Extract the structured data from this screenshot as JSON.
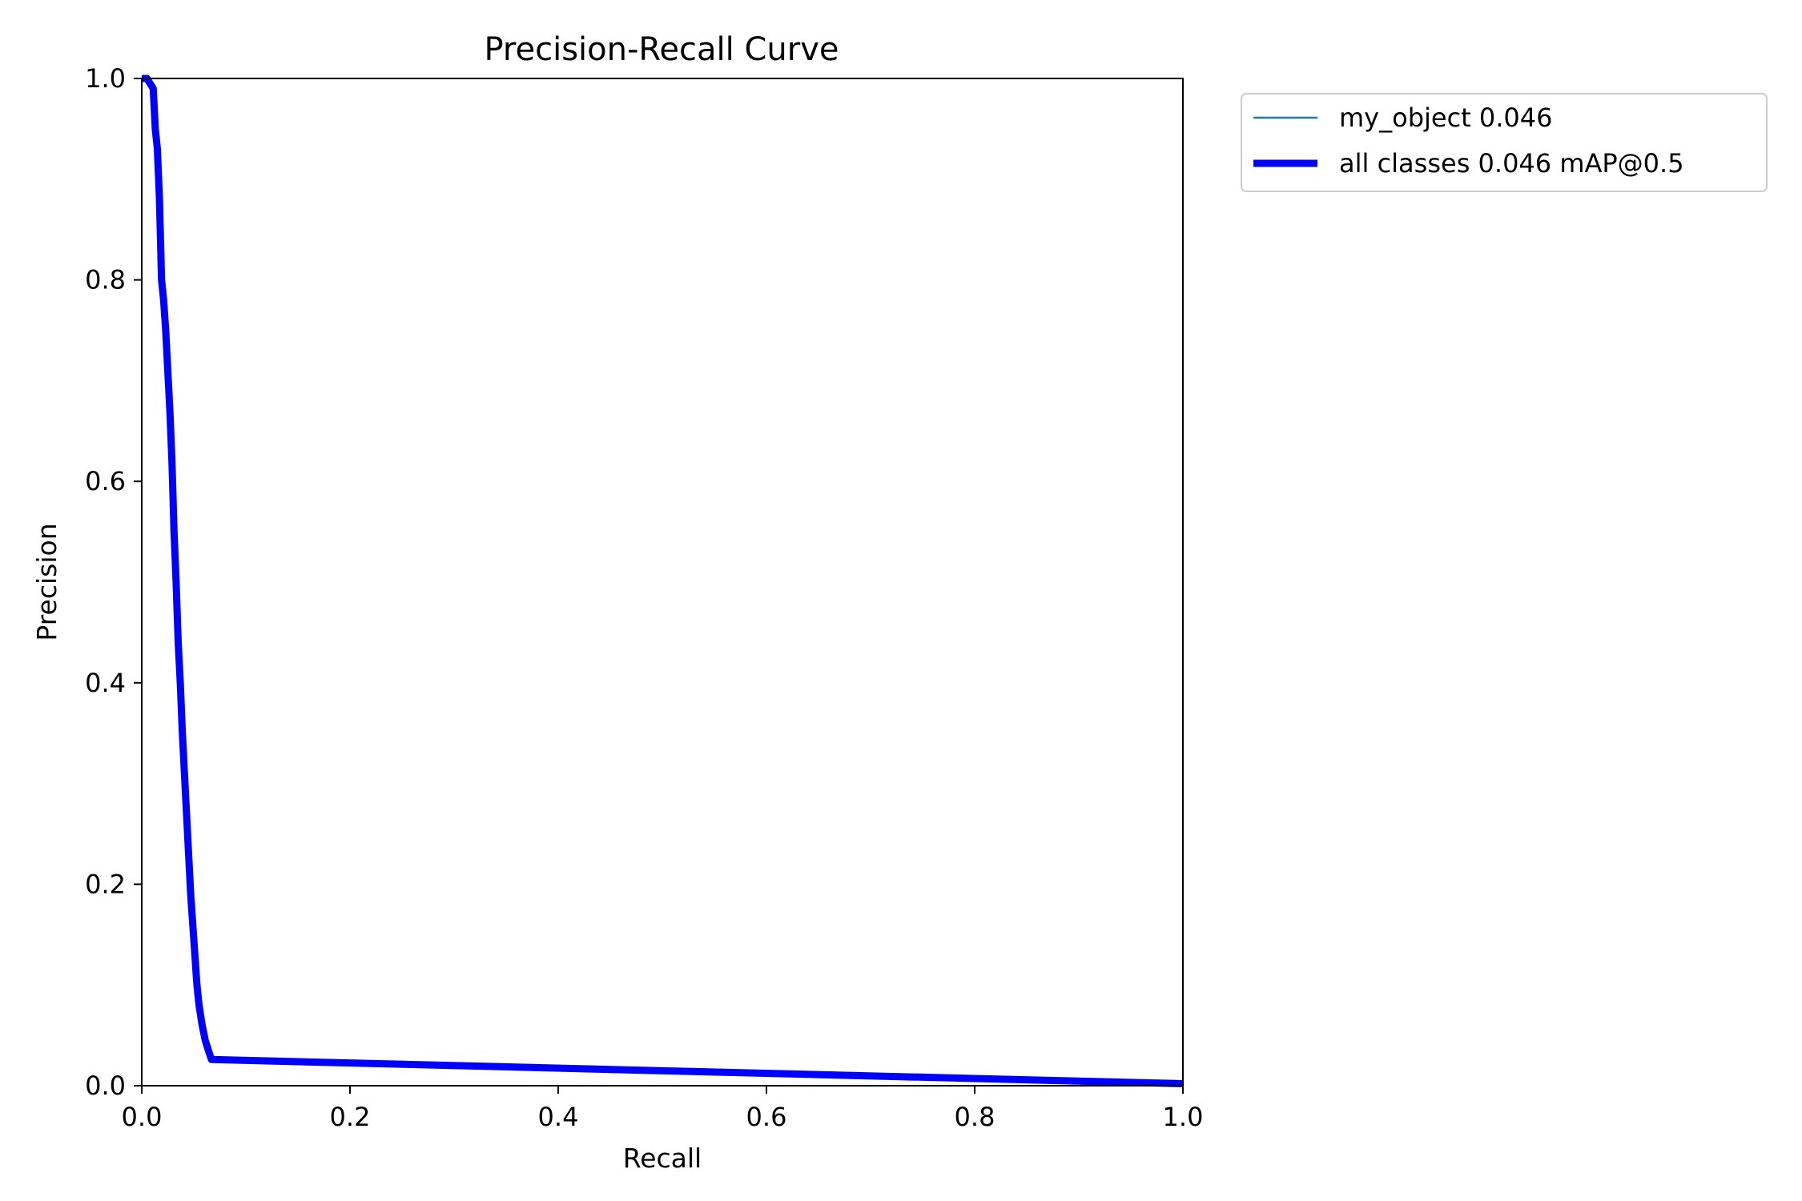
{
  "chart_data": {
    "type": "line",
    "title": "Precision-Recall Curve",
    "xlabel": "Recall",
    "ylabel": "Precision",
    "xlim": [
      0,
      1
    ],
    "ylim": [
      0,
      1
    ],
    "grid": false,
    "legend_position": "outside-top-right",
    "x_ticks": [
      "0.0",
      "0.2",
      "0.4",
      "0.6",
      "0.8",
      "1.0"
    ],
    "y_ticks": [
      "0.0",
      "0.2",
      "0.4",
      "0.6",
      "0.8",
      "1.0"
    ],
    "series": [
      {
        "name": "my_object 0.046",
        "color": "#1f77b4",
        "x": [
          0.0,
          0.005,
          0.011,
          0.013,
          0.015,
          0.017,
          0.018,
          0.019,
          0.021,
          0.023,
          0.025,
          0.027,
          0.029,
          0.031,
          0.033,
          0.035,
          0.037,
          0.039,
          0.041,
          0.043,
          0.045,
          0.047,
          0.049,
          0.051,
          0.053,
          0.055,
          0.058,
          0.061,
          0.064,
          0.067,
          1.0
        ],
        "y": [
          1.0,
          1.0,
          0.99,
          0.95,
          0.93,
          0.88,
          0.84,
          0.8,
          0.78,
          0.75,
          0.71,
          0.67,
          0.62,
          0.55,
          0.5,
          0.44,
          0.4,
          0.35,
          0.31,
          0.27,
          0.23,
          0.19,
          0.16,
          0.13,
          0.1,
          0.08,
          0.06,
          0.045,
          0.035,
          0.026,
          0.002
        ]
      },
      {
        "name": "all classes 0.046 mAP@0.5",
        "color": "#0000ff",
        "x": [
          0.0,
          0.005,
          0.011,
          0.013,
          0.015,
          0.017,
          0.018,
          0.019,
          0.021,
          0.023,
          0.025,
          0.027,
          0.029,
          0.031,
          0.033,
          0.035,
          0.037,
          0.039,
          0.041,
          0.043,
          0.045,
          0.047,
          0.049,
          0.051,
          0.053,
          0.055,
          0.058,
          0.061,
          0.064,
          0.067,
          1.0
        ],
        "y": [
          1.0,
          1.0,
          0.99,
          0.95,
          0.93,
          0.88,
          0.84,
          0.8,
          0.78,
          0.75,
          0.71,
          0.67,
          0.62,
          0.55,
          0.5,
          0.44,
          0.4,
          0.35,
          0.31,
          0.27,
          0.23,
          0.19,
          0.16,
          0.13,
          0.1,
          0.08,
          0.06,
          0.045,
          0.035,
          0.026,
          0.002
        ]
      }
    ]
  }
}
